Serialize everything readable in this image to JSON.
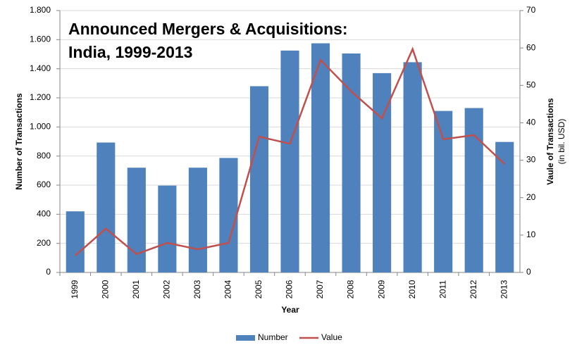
{
  "chart_data": {
    "type": "bar_line",
    "title": "Announced Mergers & Acquisitions:",
    "subtitle": "India, 1999-2013",
    "xlabel": "Year",
    "ylabel": "Number of Transactions",
    "y2label": "Vaule of Transactions",
    "y2label_sub": "(in bil. USD)",
    "categories": [
      "1999",
      "2000",
      "2001",
      "2002",
      "2003",
      "2004",
      "2005",
      "2006",
      "2007",
      "2008",
      "2009",
      "2010",
      "2011",
      "2012",
      "2013"
    ],
    "series": [
      {
        "name": "Number",
        "type": "bar",
        "color": "#4f81bd",
        "values": [
          420,
          893,
          720,
          597,
          720,
          787,
          1280,
          1525,
          1575,
          1505,
          1370,
          1445,
          1110,
          1130,
          897
        ]
      },
      {
        "name": "Value",
        "type": "line",
        "axis": "y2",
        "color": "#c0504d",
        "values": [
          4.5,
          11.7,
          4.9,
          7.9,
          6.2,
          7.9,
          36.3,
          34.4,
          56.8,
          48.4,
          41.2,
          59.7,
          35.6,
          36.7,
          29.0
        ]
      }
    ],
    "ylim": [
      0,
      1800
    ],
    "yticks": [
      0,
      200,
      400,
      600,
      800,
      {
        "value": 1000,
        "label": "1.000"
      },
      {
        "value": 1200,
        "label": "1.200"
      },
      {
        "value": 1400,
        "label": "1.400"
      },
      {
        "value": 1600,
        "label": "1.600"
      },
      {
        "value": 1800,
        "label": "1.800"
      }
    ],
    "y2lim": [
      0,
      70
    ],
    "y2ticks": [
      0,
      10,
      20,
      30,
      40,
      50,
      60,
      70
    ],
    "grid": true,
    "legend": "bottom"
  }
}
